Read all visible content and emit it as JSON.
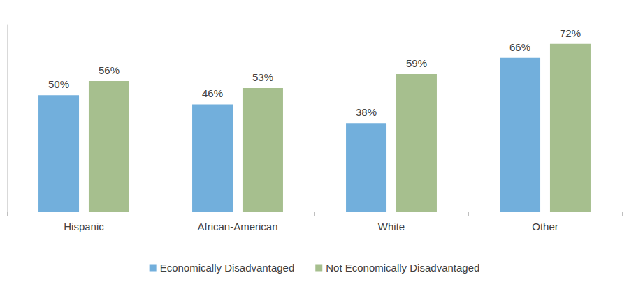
{
  "chart_data": {
    "type": "bar",
    "categories": [
      "Hispanic",
      "African-American",
      "White",
      "Other"
    ],
    "series": [
      {
        "name": "Economically Disadvantaged",
        "color": "#72afdc",
        "values": [
          50,
          46,
          38,
          66
        ],
        "value_labels": [
          "50%",
          "46%",
          "38%",
          "66%"
        ]
      },
      {
        "name": "Not Economically Disadvantaged",
        "color": "#a6bf8e",
        "values": [
          56,
          53,
          59,
          72
        ],
        "value_labels": [
          "56%",
          "53%",
          "59%",
          "72%"
        ]
      }
    ],
    "ylim": [
      0,
      80
    ],
    "grid": false,
    "legend": "bottom",
    "data_labels": true,
    "tick_labels": "x"
  }
}
